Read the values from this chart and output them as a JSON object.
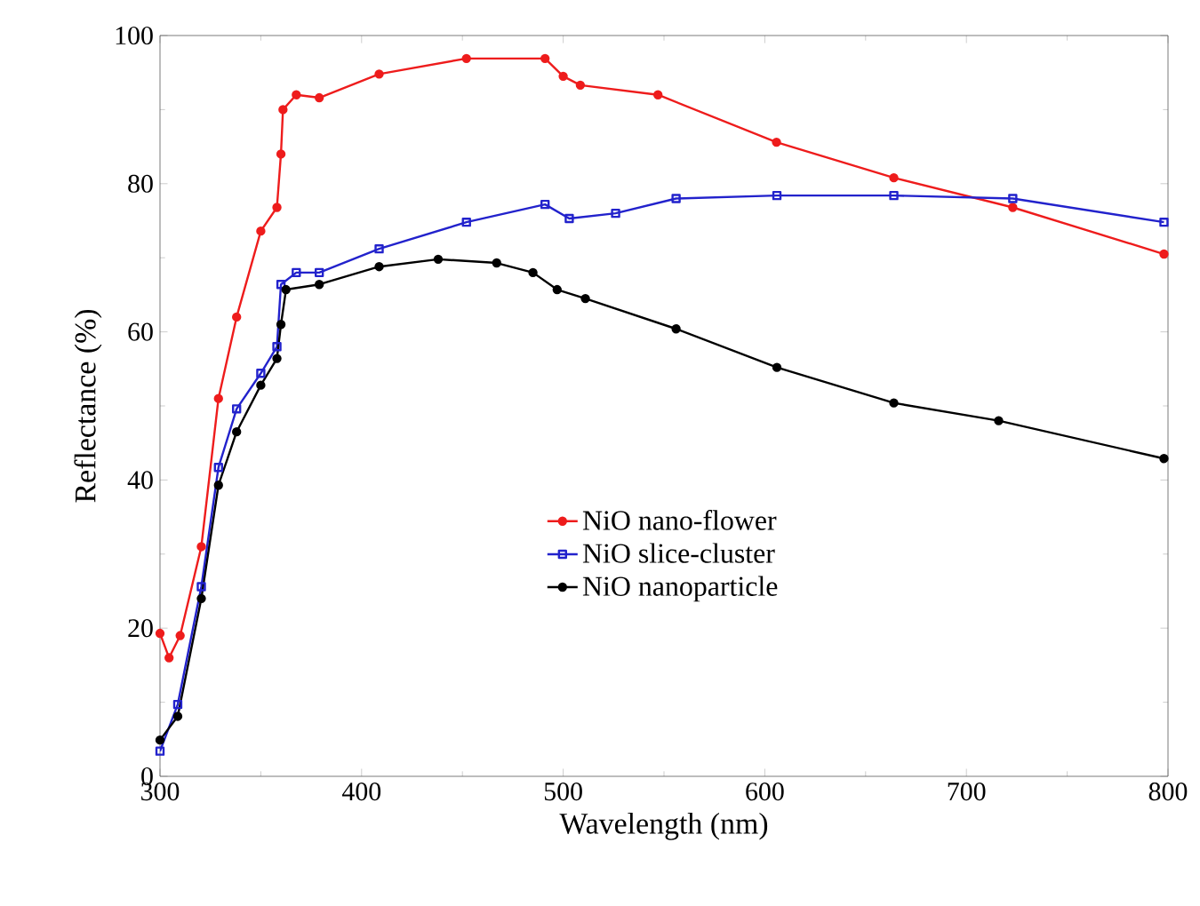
{
  "chart_data": {
    "type": "line",
    "xlabel": "Wavelength (nm)",
    "ylabel": "Reflectance (%)",
    "xlim": [
      300,
      800
    ],
    "ylim": [
      0,
      100
    ],
    "xticks": [
      300,
      400,
      500,
      600,
      700,
      800
    ],
    "yticks": [
      0,
      20,
      40,
      60,
      80,
      100
    ],
    "grid": false,
    "legend": "center",
    "line_style": "solid",
    "series": [
      {
        "name": "NiO nano-flower",
        "color": "#ee1c1c",
        "marker": "circle",
        "x": [
          300,
          304.5,
          310,
          320.5,
          329,
          338,
          350,
          358,
          360,
          361,
          367.6,
          379,
          408.7,
          452,
          491,
          500,
          508.5,
          547,
          605.8,
          664,
          723,
          798
        ],
        "values": [
          19.3,
          16,
          19,
          31,
          51,
          62,
          73.6,
          76.8,
          84,
          90,
          92,
          91.6,
          94.8,
          96.9,
          96.9,
          94.5,
          93.3,
          92,
          85.6,
          80.8,
          76.8,
          70.5
        ]
      },
      {
        "name": "NiO slice-cluster",
        "color": "#2222cc",
        "marker": "square",
        "x": [
          300,
          308.8,
          320.5,
          329,
          338,
          350,
          358,
          360,
          367.6,
          379,
          408.7,
          452,
          491,
          503,
          526,
          556,
          606,
          664,
          723,
          798
        ],
        "values": [
          3.4,
          9.7,
          25.6,
          41.7,
          49.6,
          54.4,
          58,
          66.4,
          68,
          68,
          71.2,
          74.8,
          77.2,
          75.3,
          76,
          78,
          78.4,
          78.4,
          78,
          74.8
        ]
      },
      {
        "name": "NiO nanoparticle",
        "color": "#000000",
        "marker": "circle",
        "x": [
          300,
          308.8,
          320.5,
          329,
          338,
          350,
          358,
          360,
          362.5,
          379,
          408.7,
          438,
          467,
          485,
          497,
          511,
          556,
          606,
          664,
          716,
          798
        ],
        "values": [
          4.9,
          8.1,
          24,
          39.3,
          46.5,
          52.8,
          56.4,
          61,
          65.7,
          66.4,
          68.8,
          69.8,
          69.3,
          68,
          65.7,
          64.5,
          60.4,
          55.2,
          50.4,
          48,
          42.9
        ]
      }
    ]
  }
}
